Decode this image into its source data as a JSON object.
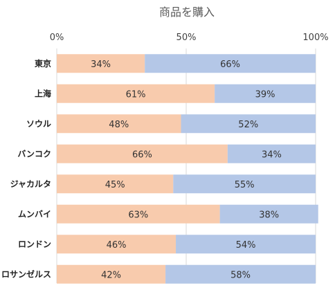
{
  "chart_data": {
    "type": "bar",
    "orientation": "horizontal",
    "stacked": "percent",
    "title": "商品を購入",
    "xlabel": "",
    "ylabel": "",
    "xlim": [
      0,
      100
    ],
    "x_ticks": [
      "0%",
      "50%",
      "100%"
    ],
    "grid": true,
    "legend": "none",
    "categories": [
      "東京",
      "上海",
      "ソウル",
      "バンコク",
      "ジャカルタ",
      "ムンバイ",
      "ロンドン",
      "ロサンゼルス"
    ],
    "series": [
      {
        "values": [
          34,
          61,
          48,
          66,
          45,
          63,
          46,
          42
        ],
        "color": "#f8cbad"
      },
      {
        "values": [
          66,
          39,
          52,
          34,
          55,
          38,
          54,
          58
        ],
        "color": "#b4c7e7"
      }
    ]
  }
}
